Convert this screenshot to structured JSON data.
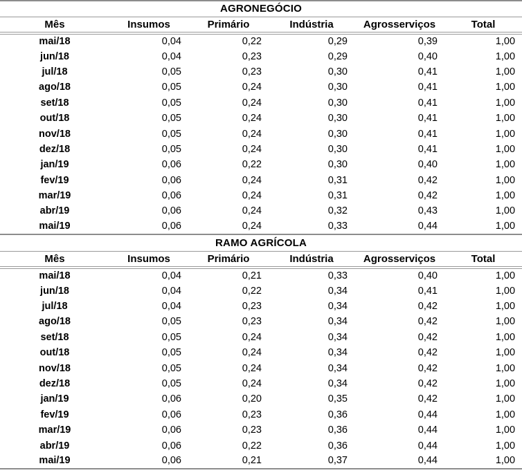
{
  "colors": {
    "line": "#999999",
    "line_strong": "#8c8c8c",
    "text": "#000000",
    "background": "#ffffff"
  },
  "tables": [
    {
      "title": "AGRONEGÓCIO",
      "columns": [
        "Mês",
        "Insumos",
        "Primário",
        "Indústria",
        "Agrosserviços",
        "Total"
      ],
      "rows": [
        {
          "month": "mai/18",
          "values": [
            "0,04",
            "0,22",
            "0,29",
            "0,39",
            "1,00"
          ]
        },
        {
          "month": "jun/18",
          "values": [
            "0,04",
            "0,23",
            "0,29",
            "0,40",
            "1,00"
          ]
        },
        {
          "month": "jul/18",
          "values": [
            "0,05",
            "0,23",
            "0,30",
            "0,41",
            "1,00"
          ]
        },
        {
          "month": "ago/18",
          "values": [
            "0,05",
            "0,24",
            "0,30",
            "0,41",
            "1,00"
          ]
        },
        {
          "month": "set/18",
          "values": [
            "0,05",
            "0,24",
            "0,30",
            "0,41",
            "1,00"
          ]
        },
        {
          "month": "out/18",
          "values": [
            "0,05",
            "0,24",
            "0,30",
            "0,41",
            "1,00"
          ]
        },
        {
          "month": "nov/18",
          "values": [
            "0,05",
            "0,24",
            "0,30",
            "0,41",
            "1,00"
          ]
        },
        {
          "month": "dez/18",
          "values": [
            "0,05",
            "0,24",
            "0,30",
            "0,41",
            "1,00"
          ]
        },
        {
          "month": "jan/19",
          "values": [
            "0,06",
            "0,22",
            "0,30",
            "0,40",
            "1,00"
          ]
        },
        {
          "month": "fev/19",
          "values": [
            "0,06",
            "0,24",
            "0,31",
            "0,42",
            "1,00"
          ]
        },
        {
          "month": "mar/19",
          "values": [
            "0,06",
            "0,24",
            "0,31",
            "0,42",
            "1,00"
          ]
        },
        {
          "month": "abr/19",
          "values": [
            "0,06",
            "0,24",
            "0,32",
            "0,43",
            "1,00"
          ]
        },
        {
          "month": "mai/19",
          "values": [
            "0,06",
            "0,24",
            "0,33",
            "0,44",
            "1,00"
          ]
        }
      ]
    },
    {
      "title": "RAMO AGRÍCOLA",
      "columns": [
        "Mês",
        "Insumos",
        "Primário",
        "Indústria",
        "Agrosserviços",
        "Total"
      ],
      "rows": [
        {
          "month": "mai/18",
          "values": [
            "0,04",
            "0,21",
            "0,33",
            "0,40",
            "1,00"
          ]
        },
        {
          "month": "jun/18",
          "values": [
            "0,04",
            "0,22",
            "0,34",
            "0,41",
            "1,00"
          ]
        },
        {
          "month": "jul/18",
          "values": [
            "0,04",
            "0,23",
            "0,34",
            "0,42",
            "1,00"
          ]
        },
        {
          "month": "ago/18",
          "values": [
            "0,05",
            "0,23",
            "0,34",
            "0,42",
            "1,00"
          ]
        },
        {
          "month": "set/18",
          "values": [
            "0,05",
            "0,24",
            "0,34",
            "0,42",
            "1,00"
          ]
        },
        {
          "month": "out/18",
          "values": [
            "0,05",
            "0,24",
            "0,34",
            "0,42",
            "1,00"
          ]
        },
        {
          "month": "nov/18",
          "values": [
            "0,05",
            "0,24",
            "0,34",
            "0,42",
            "1,00"
          ]
        },
        {
          "month": "dez/18",
          "values": [
            "0,05",
            "0,24",
            "0,34",
            "0,42",
            "1,00"
          ]
        },
        {
          "month": "jan/19",
          "values": [
            "0,06",
            "0,20",
            "0,35",
            "0,42",
            "1,00"
          ]
        },
        {
          "month": "fev/19",
          "values": [
            "0,06",
            "0,23",
            "0,36",
            "0,44",
            "1,00"
          ]
        },
        {
          "month": "mar/19",
          "values": [
            "0,06",
            "0,23",
            "0,36",
            "0,44",
            "1,00"
          ]
        },
        {
          "month": "abr/19",
          "values": [
            "0,06",
            "0,22",
            "0,36",
            "0,44",
            "1,00"
          ]
        },
        {
          "month": "mai/19",
          "values": [
            "0,06",
            "0,21",
            "0,37",
            "0,44",
            "1,00"
          ]
        }
      ]
    }
  ]
}
